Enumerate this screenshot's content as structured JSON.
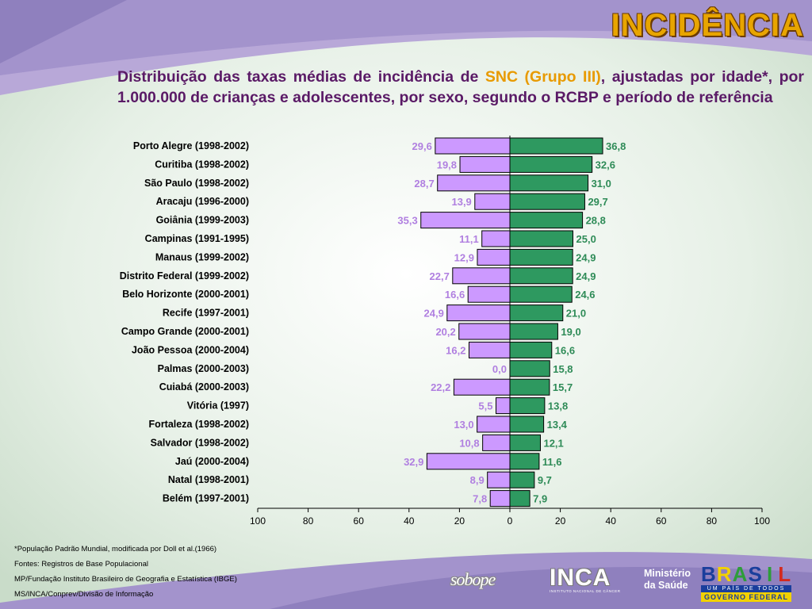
{
  "slide": {
    "heading": "INCIDÊNCIA",
    "subtitle_pre": "Distribuição das taxas médias de incidência de ",
    "subtitle_highlight": "SNC (Grupo III)",
    "subtitle_post": ", ajustadas por idade*, por 1.000.000 de crianças e adolescentes, por sexo, segundo o RCBP e período de referência",
    "colors": {
      "heading": "#e8a500",
      "subtitle": "#5a1a66",
      "highlight": "#e89a00",
      "left_bar": "#cc99ff",
      "right_bar": "#2e9960",
      "left_label": "#b07fe0",
      "right_label": "#2e8b57"
    }
  },
  "chart_data": {
    "type": "bar",
    "orientation": "horizontal-diverging",
    "categories": [
      "Porto Alegre (1998-2002)",
      "Curitiba (1998-2002)",
      "São Paulo (1998-2002)",
      "Aracaju (1996-2000)",
      "Goiânia (1999-2003)",
      "Campinas (1991-1995)",
      "Manaus (1999-2002)",
      "Distrito Federal (1999-2002)",
      "Belo Horizonte (2000-2001)",
      "Recife (1997-2001)",
      "Campo Grande (2000-2001)",
      "João Pessoa (2000-2004)",
      "Palmas (2000-2003)",
      "Cuiabá (2000-2003)",
      "Vitória (1997)",
      "Fortaleza (1998-2002)",
      "Salvador (1998-2002)",
      "Jaú (2000-2004)",
      "Natal (1998-2001)",
      "Belém (1997-2001)"
    ],
    "series": [
      {
        "side": "left",
        "values": [
          29.6,
          19.8,
          28.7,
          13.9,
          35.3,
          11.1,
          12.9,
          22.7,
          16.6,
          24.9,
          20.2,
          16.2,
          0.0,
          22.2,
          5.5,
          13.0,
          10.8,
          32.9,
          8.9,
          7.8
        ],
        "labels": [
          "29,6",
          "19,8",
          "28,7",
          "13,9",
          "35,3",
          "11,1",
          "12,9",
          "22,7",
          "16,6",
          "24,9",
          "20,2",
          "16,2",
          "0,0",
          "22,2",
          "5,5",
          "13,0",
          "10,8",
          "32,9",
          "8,9",
          "7,8"
        ]
      },
      {
        "side": "right",
        "values": [
          36.8,
          32.6,
          31.0,
          29.7,
          28.8,
          25.0,
          24.9,
          24.9,
          24.6,
          21.0,
          19.0,
          16.6,
          15.8,
          15.7,
          13.8,
          13.4,
          12.1,
          11.6,
          9.7,
          7.9
        ],
        "labels": [
          "36,8",
          "32,6",
          "31,0",
          "29,7",
          "28,8",
          "25,0",
          "24,9",
          "24,9",
          "24,6",
          "21,0",
          "19,0",
          "16,6",
          "15,8",
          "15,7",
          "13,8",
          "13,4",
          "12,1",
          "11,6",
          "9,7",
          "7,9"
        ]
      }
    ],
    "x_ticks": [
      "100",
      "80",
      "60",
      "40",
      "20",
      "0",
      "20",
      "40",
      "60",
      "80",
      "100"
    ],
    "xlim": [
      -100,
      100
    ],
    "grid": false,
    "legend": "none"
  },
  "notes": [
    "*População Padrão Mundial, modificada por Doll et al.(1966)",
    "Fontes: Registros de Base Populacional",
    "MP/Fundação Instituto Brasileiro de Geografia e Estatística (IBGE)",
    "MS/INCA/Conprev/Divisão de Informação"
  ],
  "logos": {
    "sobope": "sobope",
    "inca": "INCA",
    "inca_sub": "INSTITUTO NACIONAL DE CÂNCER",
    "ministerio_line1": "Ministério",
    "ministerio_line2": "da Saúde",
    "brasil_letters": [
      "B",
      "R",
      "A",
      "S",
      "I",
      "L"
    ],
    "brasil_tagline": "UM PAÍS DE TODOS",
    "brasil_gov": "GOVERNO FEDERAL"
  }
}
